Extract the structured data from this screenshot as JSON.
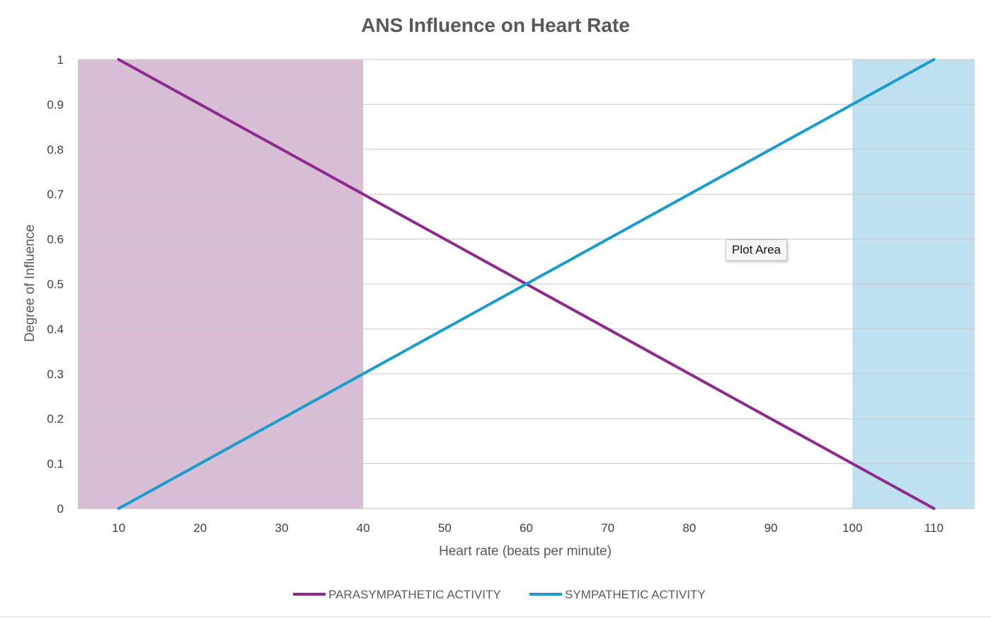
{
  "chart_data": {
    "type": "line",
    "title": "ANS Influence on Heart Rate",
    "xlabel": "Heart rate (beats per minute)",
    "ylabel": "Degree of Influence",
    "x": [
      10,
      20,
      30,
      40,
      50,
      60,
      70,
      80,
      90,
      100,
      110
    ],
    "x_ticks": [
      "10",
      "20",
      "30",
      "40",
      "50",
      "60",
      "70",
      "80",
      "90",
      "100",
      "110"
    ],
    "y_ticks": [
      "0",
      "0.1",
      "0.2",
      "0.3",
      "0.4",
      "0.5",
      "0.6",
      "0.7",
      "0.8",
      "0.9",
      "1"
    ],
    "xlim": [
      5,
      115
    ],
    "ylim": [
      0,
      1
    ],
    "grid": "horizontal",
    "legend_position": "bottom",
    "series": [
      {
        "name": "PARASYMPATHETIC ACTIVITY",
        "color": "#8e2a8e",
        "values": [
          1,
          0.9,
          0.8,
          0.7,
          0.6,
          0.5,
          0.4,
          0.3,
          0.2,
          0.1,
          0
        ]
      },
      {
        "name": "SYMPATHETIC ACTIVITY",
        "color": "#1a9ccc",
        "values": [
          0,
          0.1,
          0.2,
          0.3,
          0.4,
          0.5,
          0.6,
          0.7,
          0.8,
          0.9,
          1
        ]
      }
    ],
    "shaded_regions": [
      {
        "x_from": 5,
        "x_to": 40,
        "color": "#d7bed5"
      },
      {
        "x_from": 100,
        "x_to": 115,
        "color": "#bfe0f0"
      }
    ]
  },
  "tooltip": {
    "text": "Plot Area"
  }
}
